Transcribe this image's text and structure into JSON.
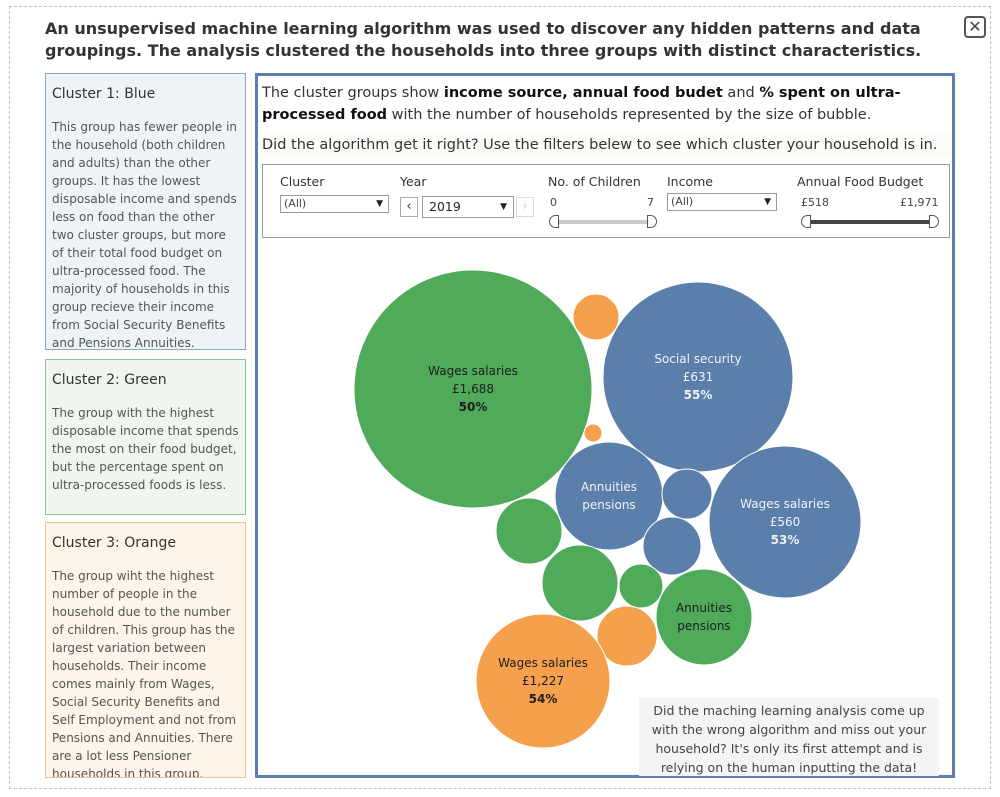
{
  "heading": "An unsupervised machine learning algorithm was used to discover any hidden patterns and data groupings. The analysis clustered the households into three groups with distinct characteristics.",
  "close_icon": "✕",
  "clusters": [
    {
      "title": "Cluster 1: Blue",
      "description": "This group has fewer people in the household (both children and adults) than the other groups. It has the lowest disposable income and spends less on food than the other two cluster groups, but more  of their total food budget on ultra-processed food. The majority of households in this group  recieve their income from Social Security Benefits and Pensions Annuities."
    },
    {
      "title": "Cluster 2: Green",
      "description": "The  group with the highest disposable income that spends the most on their food budget, but the percentage spent on ultra-processed foods is less."
    },
    {
      "title": "Cluster 3: Orange",
      "description": "The group wiht the highest number of people in the household due to the number of children. This group has the largest variation between households. Their income comes mainly from Wages, Social Security Benefits and Self Employment and not from Pensions and Annuities. There are a lot less Pensioner households in this group."
    }
  ],
  "intro": {
    "p1": "The cluster groups show ",
    "b1": "income source, annual food budet",
    "p2": " and ",
    "b2": "% spent on ultra-processed food",
    "p3": " with the number of households represented by the size of bubble."
  },
  "question": "Did the algorithm get it right? Use the filters belew to see which cluster your household is in.",
  "filters": {
    "cluster": {
      "label": "Cluster",
      "value": "(All)"
    },
    "year": {
      "label": "Year",
      "value": "2019",
      "prev": "‹",
      "next": "›"
    },
    "children": {
      "label": "No. of  Children",
      "min": "0",
      "max": "7"
    },
    "income": {
      "label": "Income",
      "value": "(All)"
    },
    "budget": {
      "label": "Annual Food Budget",
      "min": "£518",
      "max": "£1,971"
    }
  },
  "colors": {
    "blue": "#5b7fab",
    "green": "#4faa5a",
    "orange": "#f4a04d"
  },
  "bubbles": [
    {
      "cluster": "green",
      "line1": "Wages salaries",
      "line2": "£1,688",
      "line3": "50%"
    },
    {
      "cluster": "orange",
      "line1": "",
      "line2": "",
      "line3": ""
    },
    {
      "cluster": "blue",
      "line1": "Social security",
      "line2": "£631",
      "line3": "55%"
    },
    {
      "cluster": "orange",
      "line1": "",
      "line2": "",
      "line3": ""
    },
    {
      "cluster": "blue",
      "line1": "Annuities",
      "line2": "pensions",
      "line3": ""
    },
    {
      "cluster": "blue",
      "line1": "",
      "line2": "",
      "line3": ""
    },
    {
      "cluster": "blue",
      "line1": "Wages salaries",
      "line2": "£560",
      "line3": "53%"
    },
    {
      "cluster": "green",
      "line1": "",
      "line2": "",
      "line3": ""
    },
    {
      "cluster": "blue",
      "line1": "",
      "line2": "",
      "line3": ""
    },
    {
      "cluster": "green",
      "line1": "",
      "line2": "",
      "line3": ""
    },
    {
      "cluster": "green",
      "line1": "",
      "line2": "",
      "line3": ""
    },
    {
      "cluster": "orange",
      "line1": "",
      "line2": "",
      "line3": ""
    },
    {
      "cluster": "green",
      "line1": "Annuities",
      "line2": "pensions",
      "line3": ""
    },
    {
      "cluster": "orange",
      "line1": "Wages salaries",
      "line2": "£1,227",
      "line3": "54%"
    }
  ],
  "note": "Did the maching learning analysis come up with the wrong algorithm and miss out your household? It's only its first attempt and is relying on the human inputting the data!"
}
